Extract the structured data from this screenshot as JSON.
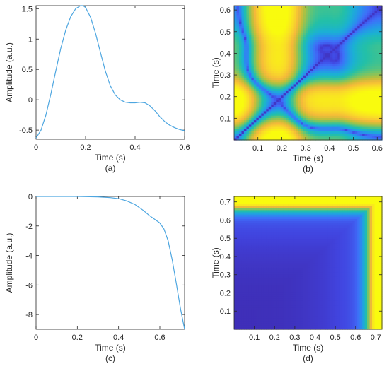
{
  "colors": {
    "line": "#4DA6E0",
    "axis": "#262626",
    "colormap": [
      "#3E26A8",
      "#4145E0",
      "#3F6EF9",
      "#2794EB",
      "#1BB1D3",
      "#23C0A7",
      "#6CC56E",
      "#BAC03A",
      "#F5B93A",
      "#F9DC28",
      "#F9FB0E"
    ]
  },
  "chart_data": [
    {
      "id": "a",
      "type": "line",
      "caption": "(a)",
      "xlabel": "Time (s)",
      "ylabel": "Amplitude (a.u.)",
      "xlim": [
        0,
        0.6
      ],
      "ylim": [
        -0.65,
        1.55
      ],
      "xticks": [
        0,
        0.2,
        0.4,
        0.6
      ],
      "xticklabels": [
        "0",
        "0.2",
        "0.4",
        "0.6"
      ],
      "yticks": [
        -0.5,
        0,
        0.5,
        1,
        1.5
      ],
      "yticklabels": [
        "-0.5",
        "0",
        "0.5",
        "1",
        "1.5"
      ],
      "grid": false,
      "x": [
        0,
        0.02,
        0.04,
        0.06,
        0.08,
        0.1,
        0.12,
        0.14,
        0.16,
        0.18,
        0.19,
        0.2,
        0.22,
        0.24,
        0.26,
        0.28,
        0.3,
        0.32,
        0.34,
        0.36,
        0.38,
        0.4,
        0.42,
        0.44,
        0.46,
        0.48,
        0.5,
        0.52,
        0.54,
        0.56,
        0.58,
        0.6
      ],
      "y": [
        -0.63,
        -0.5,
        -0.25,
        0.1,
        0.48,
        0.85,
        1.15,
        1.37,
        1.5,
        1.55,
        1.55,
        1.52,
        1.36,
        1.1,
        0.78,
        0.47,
        0.23,
        0.08,
        0.0,
        -0.04,
        -0.05,
        -0.05,
        -0.04,
        -0.05,
        -0.1,
        -0.18,
        -0.28,
        -0.36,
        -0.42,
        -0.46,
        -0.49,
        -0.51
      ]
    },
    {
      "id": "b",
      "type": "heatmap",
      "caption": "(b)",
      "xlabel": "Time (s)",
      "ylabel": "Time (s)",
      "xlim": [
        0,
        0.62
      ],
      "ylim": [
        0,
        0.62
      ],
      "xticks": [
        0.1,
        0.2,
        0.3,
        0.4,
        0.5,
        0.6
      ],
      "xticklabels": [
        "0.1",
        "0.2",
        "0.3",
        "0.4",
        "0.5",
        "0.6"
      ],
      "yticks": [
        0.1,
        0.2,
        0.3,
        0.4,
        0.5,
        0.6
      ],
      "yticklabels": [
        "0.1",
        "0.2",
        "0.3",
        "0.4",
        "0.5",
        "0.6"
      ],
      "description": "symmetric map, low along diagonal, high near (t=0.19, t=0..0.6)"
    },
    {
      "id": "c",
      "type": "line",
      "caption": "(c)",
      "xlabel": "Time (s)",
      "ylabel": "Amplitude (a.u.)",
      "xlim": [
        0,
        0.72
      ],
      "ylim": [
        -9,
        0
      ],
      "xticks": [
        0,
        0.2,
        0.4,
        0.6
      ],
      "xticklabels": [
        "0",
        "0.2",
        "0.4",
        "0.6"
      ],
      "yticks": [
        -8,
        -6,
        -4,
        -2,
        0
      ],
      "yticklabels": [
        "-8",
        "-6",
        "-4",
        "-2",
        "0"
      ],
      "grid": false,
      "x": [
        0,
        0.1,
        0.2,
        0.3,
        0.36,
        0.4,
        0.44,
        0.48,
        0.52,
        0.55,
        0.58,
        0.6,
        0.62,
        0.64,
        0.66,
        0.68,
        0.7,
        0.72
      ],
      "y": [
        0,
        0,
        0,
        -0.03,
        -0.08,
        -0.15,
        -0.3,
        -0.55,
        -0.95,
        -1.3,
        -1.6,
        -1.8,
        -2.2,
        -3.0,
        -4.3,
        -5.9,
        -7.6,
        -9.0
      ]
    },
    {
      "id": "d",
      "type": "heatmap",
      "caption": "(d)",
      "xlabel": "Time (s)",
      "ylabel": "Time (s)",
      "xlim": [
        0,
        0.73
      ],
      "ylim": [
        0,
        0.73
      ],
      "xticks": [
        0.1,
        0.2,
        0.3,
        0.4,
        0.5,
        0.6,
        0.7
      ],
      "xticklabels": [
        "0.1",
        "0.2",
        "0.3",
        "0.4",
        "0.5",
        "0.6",
        "0.7"
      ],
      "yticks": [
        0.1,
        0.2,
        0.3,
        0.4,
        0.5,
        0.6,
        0.7
      ],
      "yticklabels": [
        "0.1",
        "0.2",
        "0.3",
        "0.4",
        "0.5",
        "0.6",
        "0.7"
      ],
      "description": "low almost everywhere, high at the edge t=0.72 in both axes"
    }
  ]
}
